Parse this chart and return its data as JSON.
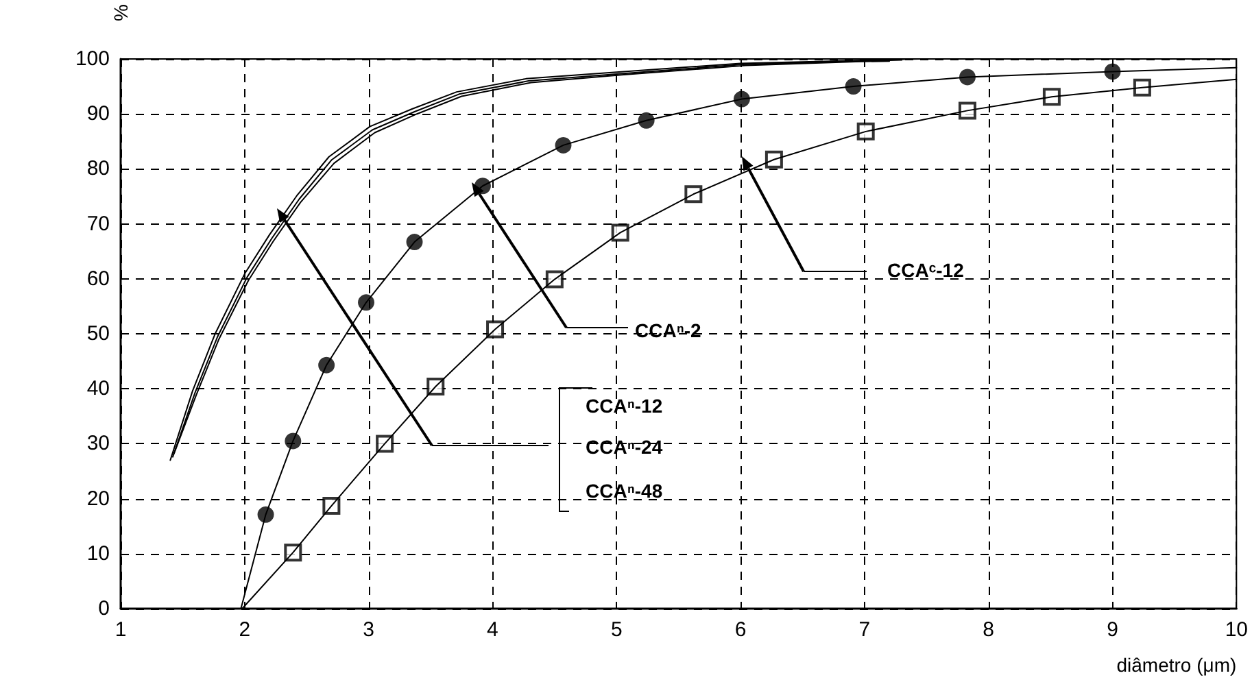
{
  "chart_data": {
    "type": "line",
    "xlabel": "diâmetro (μm)",
    "ylabel": "%",
    "xlim": [
      1,
      10
    ],
    "xticks": [
      1,
      2,
      3,
      4,
      5,
      6,
      7,
      8,
      9,
      10
    ],
    "ylim": [
      0,
      100
    ],
    "yticks": [
      0,
      10,
      20,
      30,
      40,
      50,
      60,
      70,
      80,
      90,
      100
    ],
    "grid": true,
    "series": [
      {
        "color": "#000000",
        "marker": "none",
        "x": [
          1.4,
          1.58,
          1.76,
          2.0,
          2.2,
          2.42,
          2.68,
          3.01,
          3.35,
          3.71,
          4.27,
          5.0,
          6.0,
          6.89,
          7.44
        ],
        "values": [
          27,
          39.6,
          49.9,
          60.9,
          68,
          75.1,
          82.2,
          87.7,
          90.9,
          94.0,
          96.4,
          97.6,
          99.2,
          99.7,
          100
        ]
      },
      {
        "color": "#000000",
        "marker": "none",
        "x": [
          1.42,
          1.6,
          1.78,
          2.02,
          2.22,
          2.44,
          2.7,
          3.03,
          3.37,
          3.73,
          4.29,
          5.02,
          6.02,
          6.91,
          7.3
        ],
        "values": [
          27.6,
          39.3,
          49.4,
          60.3,
          67.4,
          74.5,
          81.6,
          87.1,
          90.4,
          93.6,
          96.0,
          97.3,
          99.0,
          99.6,
          99.8
        ]
      },
      {
        "color": "#000000",
        "marker": "none",
        "x": [
          1.43,
          1.61,
          1.79,
          2.03,
          2.23,
          2.45,
          2.72,
          3.05,
          3.39,
          3.75,
          4.31,
          5.04,
          6.04,
          6.93,
          7.2
        ],
        "values": [
          28.2,
          38.9,
          48.9,
          59.7,
          66.8,
          73.9,
          81.0,
          86.6,
          90.0,
          93.2,
          95.7,
          97.1,
          98.8,
          99.5,
          99.6
        ]
      },
      {
        "color": "#000000",
        "marker": "none",
        "x": [
          1.97,
          2.17,
          2.39,
          2.66,
          2.98,
          3.37,
          3.92,
          4.57,
          5.24,
          6.01,
          6.91,
          7.83,
          9.0,
          10
        ],
        "values": [
          0,
          17.1,
          30.5,
          44.3,
          55.7,
          66.7,
          76.9,
          84.3,
          88.8,
          92.7,
          95.0,
          96.7,
          97.7,
          98.4
        ]
      },
      {
        "type": "scatter",
        "color": "#000000",
        "marker": "circle",
        "x": [
          2.17,
          2.39,
          2.66,
          2.98,
          3.37,
          3.92,
          4.57,
          5.24,
          6.01,
          6.91,
          7.83,
          9.0
        ],
        "values": [
          17.1,
          30.5,
          44.3,
          55.7,
          66.7,
          76.9,
          84.3,
          88.8,
          92.7,
          95.0,
          96.7,
          97.7
        ]
      },
      {
        "color": "#000000",
        "marker": "none",
        "x": [
          1.98,
          2.39,
          2.7,
          3.13,
          3.54,
          4.02,
          4.5,
          5.03,
          5.62,
          6.27,
          7.01,
          7.83,
          8.51,
          9.24,
          10
        ],
        "values": [
          0,
          10.2,
          18.7,
          30.0,
          40.4,
          50.8,
          59.9,
          68.4,
          75.4,
          81.7,
          86.8,
          90.6,
          93.1,
          94.8,
          96.3
        ]
      },
      {
        "type": "scatter",
        "color": "#000000",
        "marker": "square",
        "x": [
          2.39,
          2.7,
          3.13,
          3.54,
          4.02,
          4.5,
          5.03,
          5.62,
          6.27,
          7.01,
          7.83,
          8.51,
          9.24
        ],
        "values": [
          10.2,
          18.7,
          30.0,
          40.4,
          50.8,
          59.9,
          68.4,
          75.4,
          81.7,
          86.8,
          90.6,
          93.1,
          94.8
        ]
      }
    ],
    "annotations": [
      "CCAⁿ-12",
      "CCAⁿ-24",
      "CCAⁿ-48",
      "CCAⁿ-2",
      "CCAᶜ-12"
    ]
  }
}
